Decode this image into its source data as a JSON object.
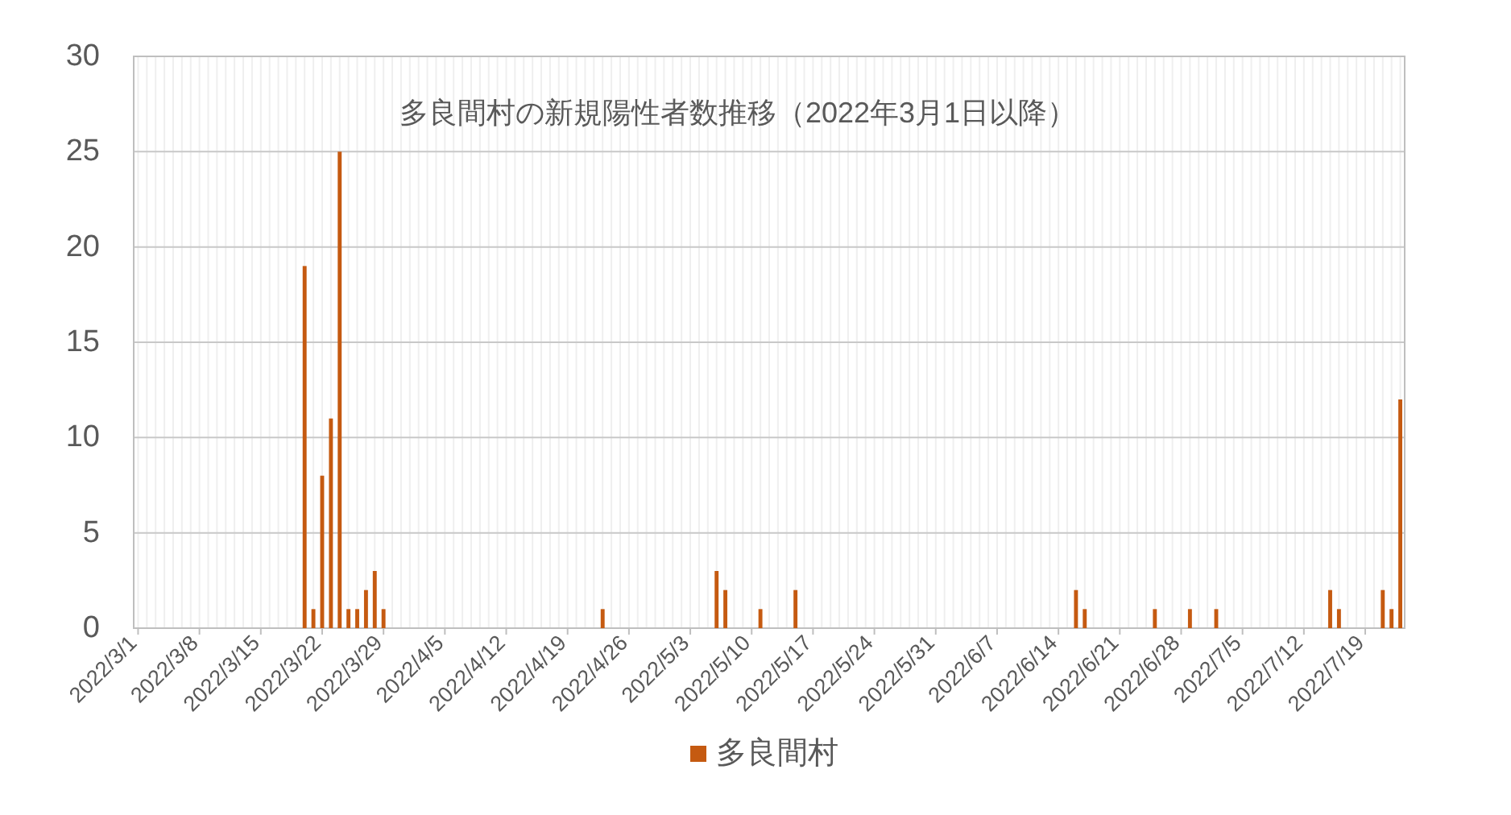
{
  "chart_data": {
    "type": "bar",
    "title": "多良間村の新規陽性者数推移（2022年3月1日以降）",
    "x": [
      "2022-03-20",
      "2022-03-21",
      "2022-03-22",
      "2022-03-23",
      "2022-03-24",
      "2022-03-25",
      "2022-03-26",
      "2022-03-27",
      "2022-03-28",
      "2022-03-29",
      "2022-04-23",
      "2022-05-06",
      "2022-05-07",
      "2022-05-11",
      "2022-05-15",
      "2022-06-16",
      "2022-06-17",
      "2022-06-25",
      "2022-06-29",
      "2022-07-02",
      "2022-07-15",
      "2022-07-16",
      "2022-07-21",
      "2022-07-22",
      "2022-07-23"
    ],
    "series": [
      {
        "name": "多良間村",
        "color": "#c55a11",
        "values": [
          19,
          1,
          8,
          11,
          25,
          1,
          1,
          2,
          3,
          1,
          1,
          3,
          2,
          1,
          2,
          2,
          1,
          1,
          1,
          1,
          2,
          1,
          2,
          1,
          12
        ]
      }
    ],
    "xlim": [
      "2022-02-28T12:00",
      "2022-07-23T12:00"
    ],
    "xticks": [
      {
        "value": "2022-03-01",
        "label": "2022/3/1"
      },
      {
        "value": "2022-03-08",
        "label": "2022/3/8"
      },
      {
        "value": "2022-03-15",
        "label": "2022/3/15"
      },
      {
        "value": "2022-03-22",
        "label": "2022/3/22"
      },
      {
        "value": "2022-03-29",
        "label": "2022/3/29"
      },
      {
        "value": "2022-04-05",
        "label": "2022/4/5"
      },
      {
        "value": "2022-04-12",
        "label": "2022/4/12"
      },
      {
        "value": "2022-04-19",
        "label": "2022/4/19"
      },
      {
        "value": "2022-04-26",
        "label": "2022/4/26"
      },
      {
        "value": "2022-05-03",
        "label": "2022/5/3"
      },
      {
        "value": "2022-05-10",
        "label": "2022/5/10"
      },
      {
        "value": "2022-05-17",
        "label": "2022/5/17"
      },
      {
        "value": "2022-05-24",
        "label": "2022/5/24"
      },
      {
        "value": "2022-05-31",
        "label": "2022/5/31"
      },
      {
        "value": "2022-06-07",
        "label": "2022/6/7"
      },
      {
        "value": "2022-06-14",
        "label": "2022/6/14"
      },
      {
        "value": "2022-06-21",
        "label": "2022/6/21"
      },
      {
        "value": "2022-06-28",
        "label": "2022/6/28"
      },
      {
        "value": "2022-07-05",
        "label": "2022/7/5"
      },
      {
        "value": "2022-07-12",
        "label": "2022/7/12"
      },
      {
        "value": "2022-07-19",
        "label": "2022/7/19"
      }
    ],
    "ylim": [
      0,
      30
    ],
    "yticks": [
      0,
      5,
      10,
      15,
      20,
      25,
      30
    ],
    "grid": true,
    "legend": "bottom"
  }
}
